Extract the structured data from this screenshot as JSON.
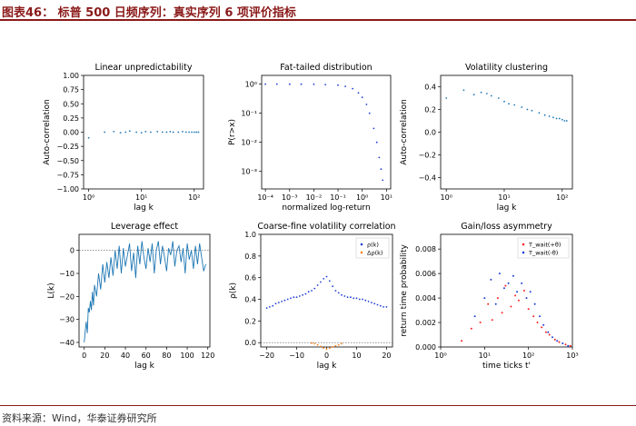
{
  "header": {
    "title": "图表46：  标普 500 日频序列：真实序列 6 项评价指标"
  },
  "footer": {
    "source": "资料来源：Wind，华泰证券研究所"
  },
  "colors": {
    "accent": "#8b1a1a",
    "blue": "#1f77b4",
    "darkblue": "#1f3fd6",
    "orange": "#ff7f0e",
    "red": "#ff2020"
  },
  "chart_data": [
    {
      "type": "scatter",
      "title": "Linear unpredictability",
      "xlabel": "lag k",
      "ylabel": "Auto-correlation",
      "xscale": "log",
      "xlim": [
        0.8,
        150
      ],
      "ylim": [
        -1.0,
        1.0
      ],
      "xticks": [
        1,
        10,
        100
      ],
      "xticklabels": [
        "10⁰",
        "10¹",
        "10²"
      ],
      "yticks": [
        -1.0,
        -0.75,
        -0.5,
        -0.25,
        0.0,
        0.25,
        0.5,
        0.75,
        1.0
      ],
      "yticklabels": [
        "−1.00",
        "−0.75",
        "−0.50",
        "−0.25",
        "0.00",
        "0.25",
        "0.50",
        "0.75",
        "1.00"
      ],
      "series": [
        {
          "x": [
            1,
            2,
            3,
            4,
            5,
            6,
            8,
            10,
            12,
            15,
            20,
            25,
            30,
            35,
            40,
            50,
            60,
            70,
            80,
            90,
            100,
            110,
            120
          ],
          "y": [
            -0.1,
            0.0,
            0.01,
            -0.01,
            0.0,
            0.02,
            0.0,
            -0.01,
            0.01,
            0.0,
            0.01,
            0.0,
            0.0,
            0.01,
            0.0,
            0.0,
            0.01,
            0.0,
            0.0,
            0.0,
            0.0,
            0.0,
            0.0
          ]
        }
      ]
    },
    {
      "type": "scatter",
      "title": "Fat-tailed distribution",
      "xlabel": "normalized log-return",
      "ylabel": "P(r>x)",
      "xscale": "log",
      "yscale": "log",
      "xlim": [
        7e-05,
        15
      ],
      "ylim": [
        0.00025,
        2
      ],
      "xticks": [
        0.0001,
        0.001,
        0.01,
        0.1,
        1,
        10
      ],
      "xticklabels": [
        "10⁻⁴",
        "10⁻³",
        "10⁻²",
        "10⁻¹",
        "10⁰",
        "10¹"
      ],
      "yticks": [
        1,
        0.1,
        0.01,
        0.001
      ],
      "yticklabels": [
        "10⁰",
        "10⁻¹",
        "10⁻²",
        "10⁻³"
      ],
      "series": [
        {
          "x": [
            0.0001,
            0.0003,
            0.001,
            0.003,
            0.01,
            0.03,
            0.1,
            0.2,
            0.4,
            0.7,
            1.0,
            1.5,
            2.0,
            3.0,
            4.0,
            5.0,
            6.0,
            7.0
          ],
          "y": [
            1.0,
            1.0,
            0.999,
            0.997,
            0.99,
            0.97,
            0.92,
            0.84,
            0.7,
            0.5,
            0.35,
            0.2,
            0.1,
            0.03,
            0.01,
            0.003,
            0.0012,
            0.0005
          ]
        }
      ]
    },
    {
      "type": "scatter",
      "title": "Volatility clustering",
      "xlabel": "lag k",
      "ylabel": "Auto-correlation",
      "xscale": "log",
      "xlim": [
        0.8,
        150
      ],
      "ylim": [
        -0.5,
        0.5
      ],
      "xticks": [
        1,
        10,
        100
      ],
      "xticklabels": [
        "10⁰",
        "10¹",
        "10²"
      ],
      "yticks": [
        -0.4,
        -0.2,
        0.0,
        0.2,
        0.4
      ],
      "yticklabels": [
        "−0.4",
        "−0.2",
        "0.0",
        "0.2",
        "0.4"
      ],
      "series": [
        {
          "x": [
            1,
            2,
            3,
            4,
            5,
            6,
            8,
            10,
            12,
            15,
            20,
            25,
            30,
            40,
            50,
            60,
            70,
            80,
            90,
            100,
            110,
            120
          ],
          "y": [
            0.3,
            0.37,
            0.33,
            0.35,
            0.34,
            0.32,
            0.3,
            0.27,
            0.25,
            0.24,
            0.22,
            0.2,
            0.19,
            0.17,
            0.15,
            0.14,
            0.13,
            0.12,
            0.12,
            0.11,
            0.1,
            0.1
          ]
        }
      ]
    },
    {
      "type": "line",
      "title": "Leverage effect",
      "xlabel": "lag k",
      "ylabel": "L(k)",
      "xlim": [
        -5,
        122
      ],
      "ylim": [
        -42,
        7
      ],
      "xticks": [
        0,
        20,
        40,
        60,
        80,
        100,
        120
      ],
      "xticklabels": [
        "0",
        "20",
        "40",
        "60",
        "80",
        "100",
        "120"
      ],
      "yticks": [
        0,
        -10,
        -20,
        -30,
        -40
      ],
      "yticklabels": [
        "0",
        "−10",
        "−20",
        "−30",
        "−40"
      ],
      "series": [
        {
          "x": [
            0,
            1,
            2,
            3,
            4,
            5,
            6,
            7,
            8,
            9,
            10,
            12,
            14,
            16,
            18,
            20,
            22,
            24,
            26,
            28,
            30,
            32,
            34,
            36,
            38,
            40,
            42,
            44,
            46,
            48,
            50,
            52,
            54,
            56,
            58,
            60,
            62,
            64,
            66,
            68,
            70,
            72,
            74,
            76,
            78,
            80,
            82,
            84,
            86,
            88,
            90,
            92,
            94,
            96,
            98,
            100,
            102,
            104,
            106,
            108,
            110,
            112,
            114,
            116,
            118
          ],
          "y": [
            -40,
            -35,
            -31,
            -36,
            -25,
            -27,
            -22,
            -26,
            -18,
            -24,
            -15,
            -20,
            -10,
            -17,
            -6,
            -14,
            -5,
            -12,
            -3,
            -11,
            0,
            -8,
            2,
            -10,
            1,
            -7,
            -2,
            3,
            -9,
            -1,
            -12,
            2,
            -6,
            4,
            -3,
            -8,
            1,
            -5,
            3,
            -10,
            0,
            4,
            -6,
            2,
            -3,
            -9,
            1,
            -2,
            4,
            -7,
            0,
            2,
            -5,
            1,
            -10,
            3,
            -4,
            0,
            -8,
            2,
            -6,
            3,
            -3,
            -9,
            -6
          ]
        }
      ]
    },
    {
      "type": "scatter",
      "title": "Coarse-fine volatility correlation",
      "xlabel": "lag k",
      "ylabel": "ρ(k)",
      "xlim": [
        -22,
        22
      ],
      "ylim": [
        -0.04,
        1.0
      ],
      "xticks": [
        -20,
        -10,
        0,
        10,
        20
      ],
      "xticklabels": [
        "−20",
        "−10",
        "0",
        "10",
        "20"
      ],
      "yticks": [
        0.0,
        0.2,
        0.4,
        0.6,
        0.8,
        1.0
      ],
      "yticklabels": [
        "0.0",
        "0.2",
        "0.4",
        "0.6",
        "0.8",
        "1.0"
      ],
      "legend": {
        "position": "top-right",
        "entries": [
          "ρ(k)",
          "Δρ(k)"
        ]
      },
      "series": [
        {
          "name": "ρ(k)",
          "x": [
            -20,
            -19,
            -18,
            -17,
            -16,
            -15,
            -14,
            -13,
            -12,
            -11,
            -10,
            -9,
            -8,
            -7,
            -6,
            -5,
            -4,
            -3,
            -2,
            -1,
            0,
            1,
            2,
            3,
            4,
            5,
            6,
            7,
            8,
            9,
            10,
            11,
            12,
            13,
            14,
            15,
            16,
            17,
            18,
            19,
            20
          ],
          "y": [
            0.32,
            0.33,
            0.34,
            0.36,
            0.37,
            0.38,
            0.39,
            0.4,
            0.41,
            0.42,
            0.42,
            0.43,
            0.44,
            0.45,
            0.47,
            0.48,
            0.5,
            0.53,
            0.56,
            0.59,
            0.61,
            0.57,
            0.52,
            0.48,
            0.46,
            0.44,
            0.43,
            0.42,
            0.42,
            0.41,
            0.41,
            0.4,
            0.4,
            0.39,
            0.38,
            0.37,
            0.36,
            0.35,
            0.34,
            0.33,
            0.33
          ]
        },
        {
          "name": "Δρ(k)",
          "x": [
            -5,
            -4,
            -3,
            -2,
            -1,
            0,
            1,
            2,
            3,
            4,
            5
          ],
          "y": [
            -0.005,
            -0.01,
            -0.02,
            -0.035,
            -0.05,
            -0.06,
            -0.05,
            -0.04,
            -0.03,
            -0.02,
            -0.01
          ]
        }
      ]
    },
    {
      "type": "scatter",
      "title": "Gain/loss asymmetry",
      "xlabel": "time ticks t'",
      "ylabel": "return time probability",
      "xscale": "log",
      "xlim": [
        1,
        1000
      ],
      "ylim": [
        0,
        0.0092
      ],
      "xticks": [
        1,
        10,
        100,
        1000
      ],
      "xticklabels": [
        "10⁰",
        "10¹",
        "10²",
        "10³"
      ],
      "yticks": [
        0.0,
        0.002,
        0.004,
        0.006,
        0.008
      ],
      "yticklabels": [
        "0.000",
        "0.002",
        "0.004",
        "0.006",
        "0.008"
      ],
      "legend": {
        "position": "top-right",
        "entries": [
          "T_wait(+θ)",
          "T_wait(-θ)"
        ]
      },
      "series": [
        {
          "name": "T_wait(+θ)",
          "x": [
            3,
            5,
            8,
            12,
            15,
            20,
            25,
            30,
            40,
            50,
            60,
            80,
            100,
            130,
            160,
            200,
            250,
            300,
            400,
            500,
            700,
            900
          ],
          "y": [
            0.0005,
            0.0015,
            0.002,
            0.0035,
            0.0022,
            0.004,
            0.0028,
            0.005,
            0.0033,
            0.0042,
            0.0038,
            0.0046,
            0.0031,
            0.0025,
            0.002,
            0.0016,
            0.0012,
            0.001,
            0.0006,
            0.0004,
            0.0002,
            0.0001
          ]
        },
        {
          "name": "T_wait(-θ)",
          "x": [
            6,
            10,
            14,
            18,
            22,
            28,
            35,
            45,
            55,
            70,
            90,
            110,
            140,
            180,
            220,
            280,
            350,
            450,
            600,
            800
          ],
          "y": [
            0.0025,
            0.004,
            0.0055,
            0.0035,
            0.006,
            0.0048,
            0.0052,
            0.0058,
            0.0045,
            0.0052,
            0.004,
            0.0045,
            0.0035,
            0.0025,
            0.0018,
            0.0012,
            0.0008,
            0.0005,
            0.0003,
            0.0001
          ]
        }
      ]
    }
  ]
}
